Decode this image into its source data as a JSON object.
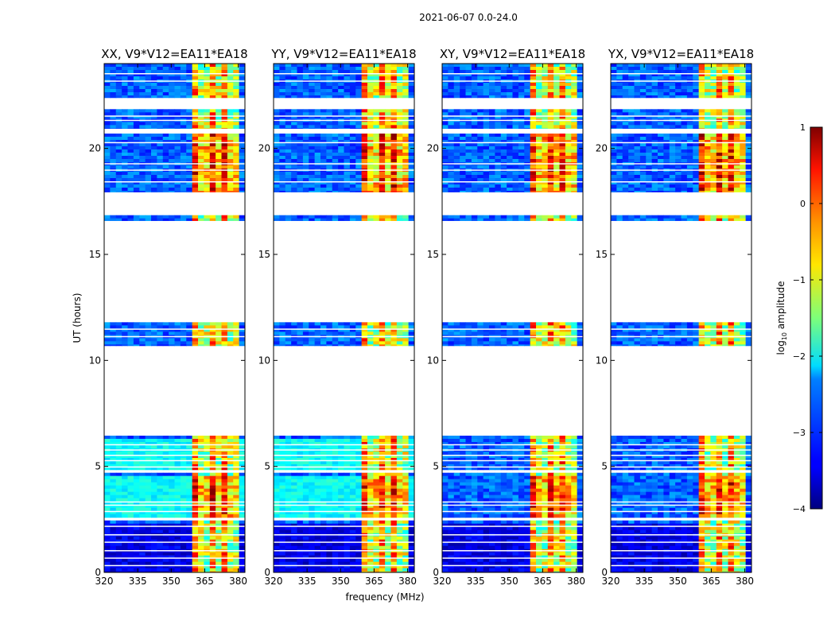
{
  "figure_title": "2021-06-07 0.0-24.0",
  "chart_data": {
    "type": "heatmap",
    "suptitle": "2021-06-07 0.0-24.0",
    "xlabel": "frequency (MHz)",
    "ylabel": "UT (hours)",
    "x_ticks": [
      320,
      335,
      350,
      365,
      380
    ],
    "x_range": [
      320,
      383
    ],
    "y_ticks": [
      0,
      5,
      10,
      15,
      20
    ],
    "y_range": [
      0,
      24
    ],
    "panels": [
      {
        "title": "XX, V9*V12=EA11*EA18",
        "pol": "XX"
      },
      {
        "title": "YY, V9*V12=EA11*EA18",
        "pol": "YY"
      },
      {
        "title": "XY, V9*V12=EA11*EA18",
        "pol": "XY"
      },
      {
        "title": "YX, V9*V12=EA11*EA18",
        "pol": "YX"
      }
    ],
    "data_blocks_ut": [
      [
        0.0,
        2.45
      ],
      [
        2.6,
        4.7
      ],
      [
        4.85,
        6.45
      ],
      [
        10.7,
        11.8
      ],
      [
        16.6,
        16.85
      ],
      [
        17.95,
        20.7
      ],
      [
        20.95,
        21.85
      ],
      [
        22.4,
        24.0
      ]
    ],
    "gap_blocks_ut": [
      [
        6.45,
        10.7
      ],
      [
        11.8,
        16.6
      ],
      [
        16.85,
        17.8
      ],
      [
        21.85,
        22.4
      ]
    ],
    "rfi_band_mhz": [
      360,
      381
    ],
    "colorbar": {
      "label": "log10 amplitude",
      "label_main": "log",
      "label_sub": "10",
      "label_tail": " amplitude",
      "range": [
        -4,
        1
      ],
      "ticks": [
        1,
        0,
        -1,
        -2,
        -3,
        -4
      ],
      "colormap": "jet"
    }
  }
}
